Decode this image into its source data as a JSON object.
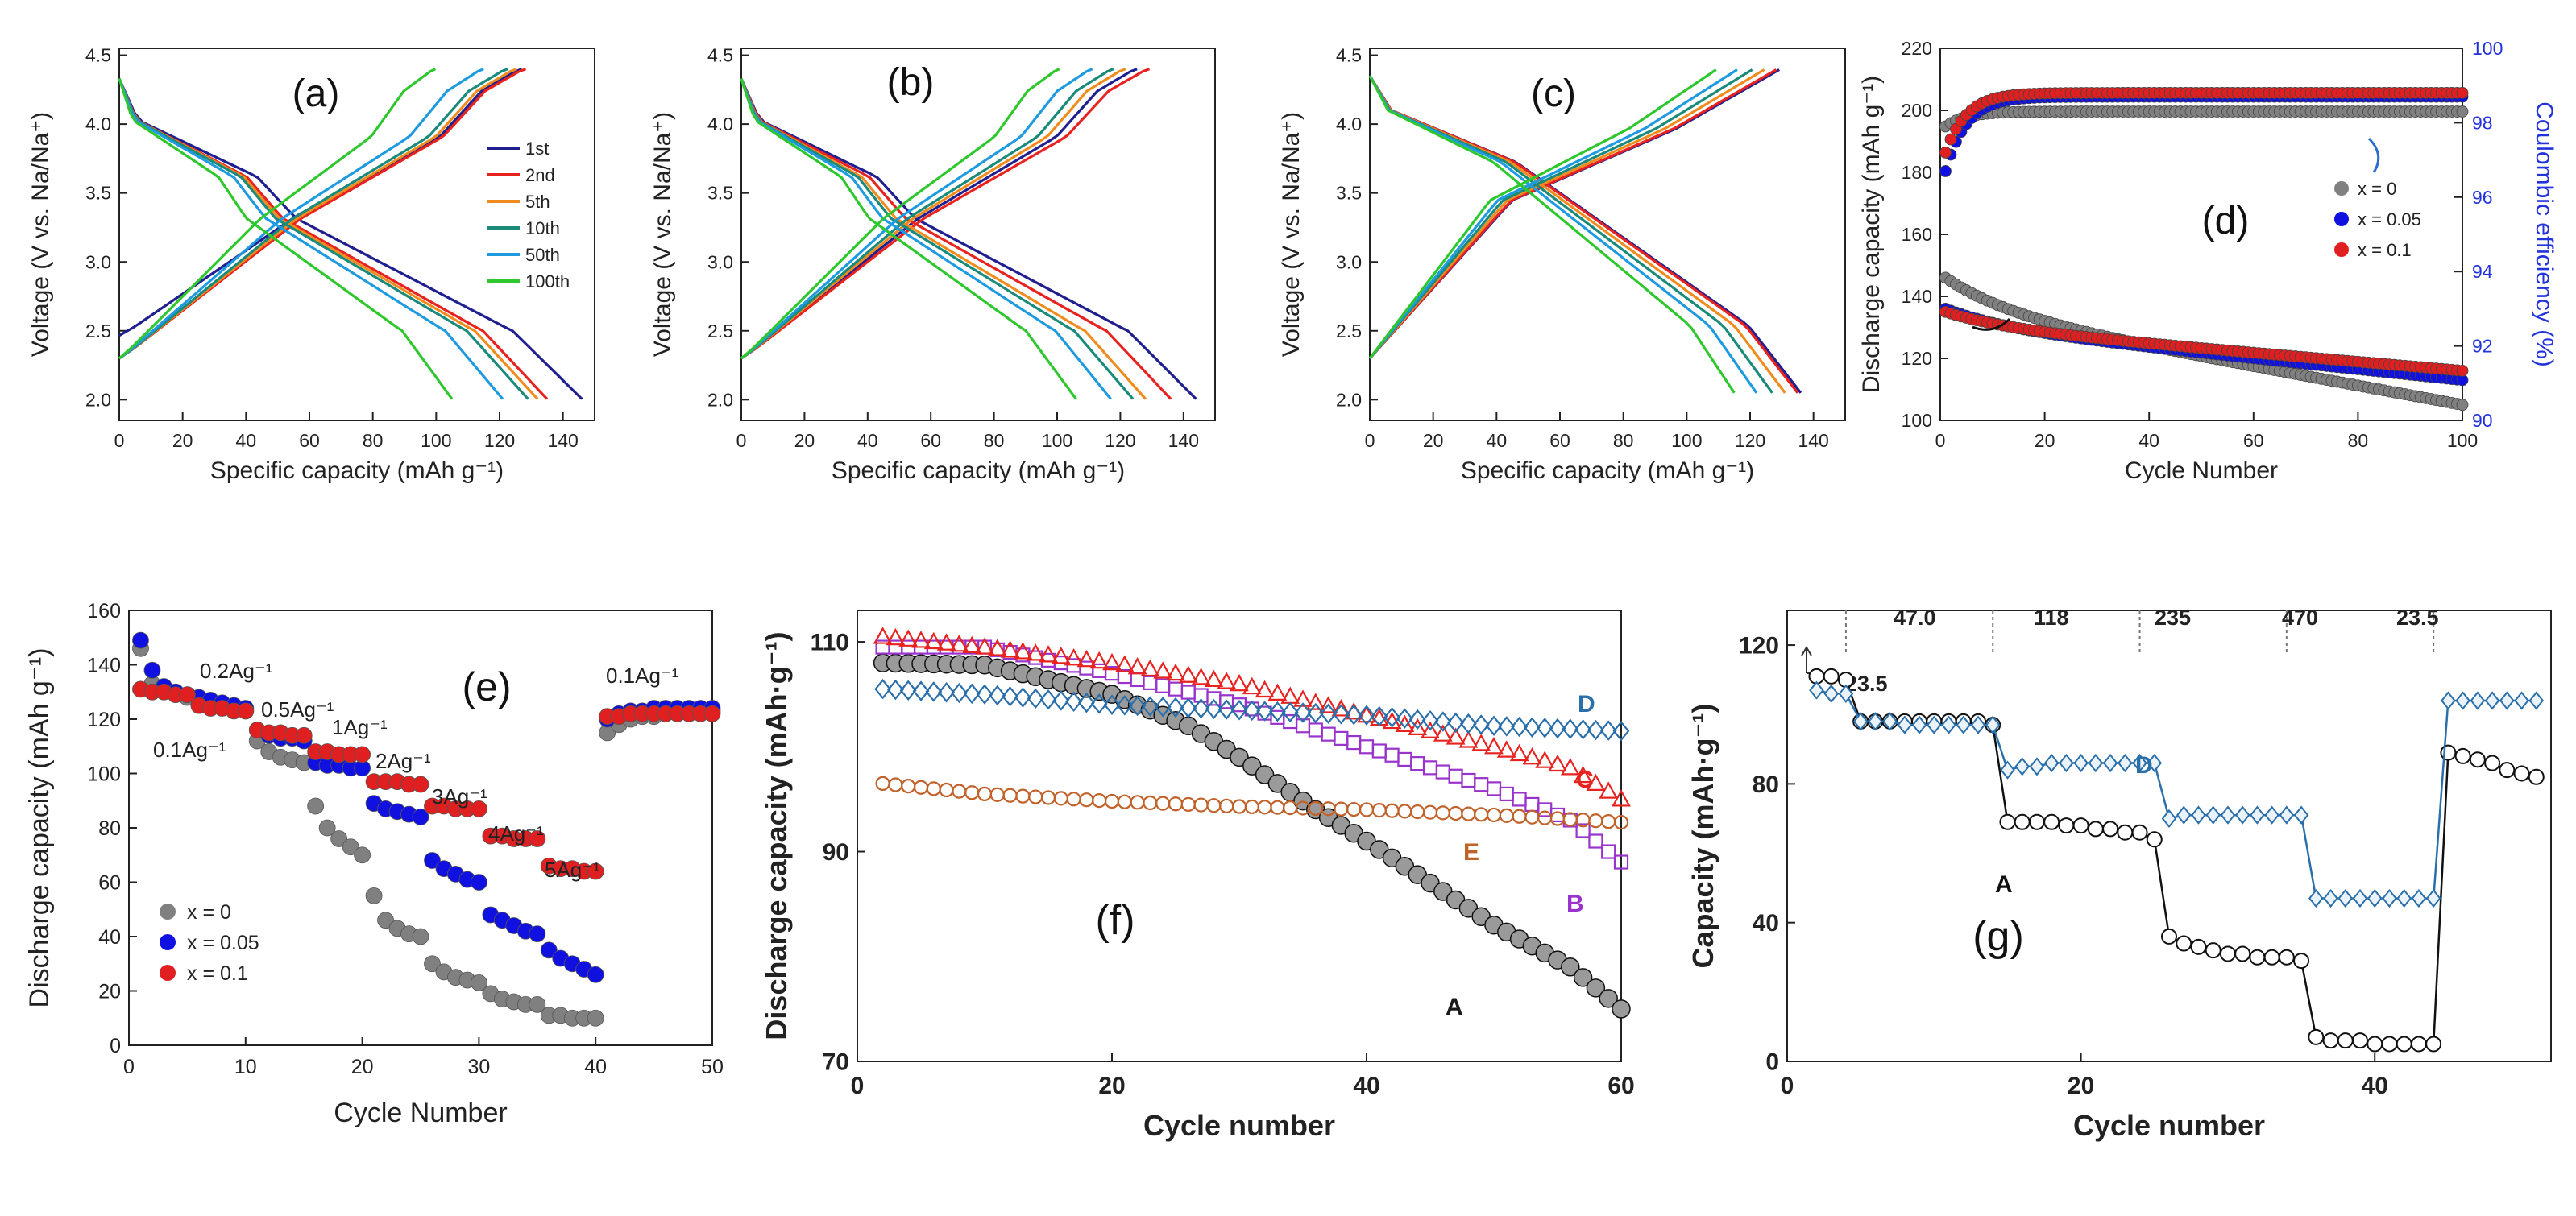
{
  "chart_data": [
    {
      "id": "a",
      "type": "line",
      "panel_label": "(a)",
      "xlabel": "Specific capacity (mAh g⁻¹)",
      "ylabel": "Voltage (V vs. Na/Na⁺)",
      "xlim": [
        0,
        150
      ],
      "ylim": [
        1.85,
        4.55
      ],
      "xticks": [
        "0",
        "20",
        "40",
        "60",
        "80",
        "100",
        "120",
        "140"
      ],
      "yticks": [
        "2.0",
        "2.5",
        "3.0",
        "3.5",
        "4.0",
        "4.5"
      ],
      "legend": [
        "1st",
        "2nd",
        "5th",
        "10th",
        "50th",
        "100th"
      ],
      "series": [
        {
          "name": "1st",
          "color": "#1f1f8f",
          "capacity": 146
        },
        {
          "name": "2nd",
          "color": "#e8231f",
          "capacity": 135
        },
        {
          "name": "5th",
          "color": "#f08c1e",
          "capacity": 132
        },
        {
          "name": "10th",
          "color": "#1a8a7a",
          "capacity": 129
        },
        {
          "name": "50th",
          "color": "#1e9be0",
          "capacity": 121
        },
        {
          "name": "100th",
          "color": "#2ec82e",
          "capacity": 105
        }
      ]
    },
    {
      "id": "b",
      "type": "line",
      "panel_label": "(b)",
      "xlabel": "Specific capacity (mAh g⁻¹)",
      "ylabel": "Voltage (V vs. Na/Na⁺)",
      "xlim": [
        0,
        150
      ],
      "ylim": [
        1.85,
        4.55
      ],
      "xticks": [
        "0",
        "20",
        "40",
        "60",
        "80",
        "100",
        "120",
        "140"
      ],
      "yticks": [
        "2.0",
        "2.5",
        "3.0",
        "3.5",
        "4.0",
        "4.5"
      ],
      "series": [
        {
          "name": "1st",
          "color": "#1f1f8f",
          "capacity": 144
        },
        {
          "name": "2nd",
          "color": "#e8231f",
          "capacity": 136
        },
        {
          "name": "5th",
          "color": "#f08c1e",
          "capacity": 128
        },
        {
          "name": "10th",
          "color": "#1a8a7a",
          "capacity": 124
        },
        {
          "name": "50th",
          "color": "#1e9be0",
          "capacity": 117
        },
        {
          "name": "100th",
          "color": "#2ec82e",
          "capacity": 106
        }
      ]
    },
    {
      "id": "c",
      "type": "line",
      "panel_label": "(c)",
      "xlabel": "Specific capacity (mAh g⁻¹)",
      "ylabel": "Voltage (V vs. Na/Na⁺)",
      "xlim": [
        0,
        150
      ],
      "ylim": [
        1.85,
        4.55
      ],
      "xticks": [
        "0",
        "20",
        "40",
        "60",
        "80",
        "100",
        "120",
        "140"
      ],
      "yticks": [
        "2.0",
        "2.5",
        "3.0",
        "3.5",
        "4.0",
        "4.5"
      ],
      "series": [
        {
          "name": "1st",
          "color": "#1f1f8f",
          "capacity": 136
        },
        {
          "name": "2nd",
          "color": "#e8231f",
          "capacity": 135
        },
        {
          "name": "5th",
          "color": "#f08c1e",
          "capacity": 131
        },
        {
          "name": "10th",
          "color": "#1a8a7a",
          "capacity": 127
        },
        {
          "name": "50th",
          "color": "#1e9be0",
          "capacity": 122
        },
        {
          "name": "100th",
          "color": "#2ec82e",
          "capacity": 115
        }
      ]
    },
    {
      "id": "d",
      "type": "scatter",
      "panel_label": "(d)",
      "xlabel": "Cycle Number",
      "ylabel": "Discharge capacity (mAh g⁻¹)",
      "y2label": "Coulombic efficiency (%)",
      "xlim": [
        0,
        100
      ],
      "ylim": [
        100,
        220
      ],
      "y2lim": [
        90,
        100
      ],
      "xticks": [
        "0",
        "20",
        "40",
        "60",
        "80",
        "100"
      ],
      "yticks": [
        "100",
        "120",
        "140",
        "160",
        "180",
        "200",
        "220"
      ],
      "y2ticks": [
        "90",
        "92",
        "94",
        "96",
        "98",
        "100"
      ],
      "legend": [
        "x = 0",
        "x = 0.05",
        "x = 0.1"
      ],
      "series": [
        {
          "name": "x = 0",
          "color": "#808080",
          "cap_start": 146,
          "cap_end": 105,
          "ce_first": 97.9,
          "ce_plateau": 98.3
        },
        {
          "name": "x = 0.05",
          "color": "#1010e0",
          "cap_start": 136,
          "cap_end": 113,
          "ce_first": 96.7,
          "ce_plateau": 98.7
        },
        {
          "name": "x = 0.1",
          "color": "#e02020",
          "cap_start": 135,
          "cap_end": 116,
          "ce_first": 97.2,
          "ce_plateau": 98.8
        }
      ]
    },
    {
      "id": "e",
      "type": "scatter",
      "panel_label": "(e)",
      "xlabel": "Cycle Number",
      "ylabel": "Discharge capacity (mAh g⁻¹)",
      "xlim": [
        0,
        50
      ],
      "ylim": [
        0,
        160
      ],
      "xticks": [
        "0",
        "10",
        "20",
        "30",
        "40",
        "50"
      ],
      "yticks": [
        "0",
        "20",
        "40",
        "60",
        "80",
        "100",
        "120",
        "140",
        "160"
      ],
      "legend": [
        "x = 0",
        "x = 0.05",
        "x = 0.1"
      ],
      "rate_labels": [
        "0.1Ag⁻¹",
        "0.2Ag⁻¹",
        "0.5Ag⁻¹",
        "1Ag⁻¹",
        "2Ag⁻¹",
        "3Ag⁻¹",
        "4Ag⁻¹",
        "5Ag⁻¹",
        "0.1Ag⁻¹"
      ],
      "series": [
        {
          "name": "x = 0",
          "color": "#808080",
          "values": [
            146,
            133,
            131,
            130,
            128,
            127,
            126,
            125,
            124,
            123,
            112,
            108,
            106,
            105,
            104,
            88,
            80,
            76,
            73,
            70,
            55,
            46,
            43,
            41,
            40,
            30,
            27,
            25,
            24,
            23,
            19,
            17,
            16,
            15,
            15,
            11,
            11,
            10,
            10,
            10,
            115,
            118,
            120,
            121,
            121,
            122,
            122,
            122,
            123,
            123
          ]
        },
        {
          "name": "x = 0.05",
          "color": "#1010e0",
          "values": [
            149,
            138,
            132,
            130,
            129,
            128,
            127,
            126,
            125,
            124,
            116,
            114,
            113,
            113,
            112,
            104,
            103,
            103,
            102,
            102,
            89,
            87,
            86,
            85,
            84,
            68,
            65,
            63,
            61,
            60,
            48,
            46,
            44,
            42,
            41,
            35,
            32,
            30,
            28,
            26,
            120,
            122,
            123,
            123,
            124,
            124,
            124,
            124,
            124,
            124
          ]
        },
        {
          "name": "x = 0.1",
          "color": "#e02020",
          "values": [
            131,
            130,
            130,
            129,
            129,
            125,
            124,
            124,
            123,
            123,
            116,
            115,
            115,
            114,
            114,
            108,
            108,
            107,
            107,
            107,
            97,
            97,
            97,
            96,
            96,
            88,
            88,
            87,
            87,
            87,
            77,
            77,
            76,
            76,
            76,
            66,
            65,
            65,
            64,
            64,
            121,
            121,
            122,
            122,
            122,
            122,
            122,
            122,
            122,
            122
          ]
        }
      ]
    },
    {
      "id": "f",
      "type": "scatter",
      "panel_label": "(f)",
      "xlabel": "Cycle number",
      "ylabel": "Discharge capacity (mAh·g⁻¹)",
      "xlim": [
        0,
        60
      ],
      "ylim": [
        70,
        113
      ],
      "xticks": [
        "0",
        "20",
        "40",
        "60"
      ],
      "yticks": [
        "70",
        "90",
        "110"
      ],
      "series": [
        {
          "name": "A",
          "color": "#1a1a1a",
          "points": [
            [
              2,
              108
            ],
            [
              10,
              107.8
            ],
            [
              20,
              105
            ],
            [
              26,
              102
            ],
            [
              30,
              99
            ],
            [
              36,
              94
            ],
            [
              40,
              91
            ],
            [
              50,
              83
            ],
            [
              56,
              79
            ],
            [
              60,
              75
            ]
          ]
        },
        {
          "name": "B",
          "color": "#9933cc",
          "points": [
            [
              2,
              109.5
            ],
            [
              10,
              109.5
            ],
            [
              20,
              107
            ],
            [
              30,
              104
            ],
            [
              40,
              100
            ],
            [
              50,
              96
            ],
            [
              56,
              93
            ],
            [
              60,
              89
            ]
          ]
        },
        {
          "name": "C",
          "color": "#e8231f",
          "points": [
            [
              2,
              110.5
            ],
            [
              10,
              109.5
            ],
            [
              20,
              108
            ],
            [
              30,
              106
            ],
            [
              40,
              103
            ],
            [
              50,
              100
            ],
            [
              56,
              98
            ],
            [
              60,
              95
            ]
          ]
        },
        {
          "name": "D",
          "color": "#2a6faa",
          "points": [
            [
              2,
              105.5
            ],
            [
              10,
              105
            ],
            [
              20,
              104
            ],
            [
              30,
              103.5
            ],
            [
              40,
              103
            ],
            [
              50,
              102
            ],
            [
              60,
              101.5
            ]
          ]
        },
        {
          "name": "E",
          "color": "#c0622a",
          "points": [
            [
              2,
              96.5
            ],
            [
              10,
              95.5
            ],
            [
              20,
              94.8
            ],
            [
              30,
              94.3
            ],
            [
              40,
              94
            ],
            [
              50,
              93.5
            ],
            [
              60,
              92.8
            ]
          ]
        }
      ]
    },
    {
      "id": "g",
      "type": "scatter",
      "panel_label": "(g)",
      "xlabel": "Cycle number",
      "ylabel": "Capacity (mAh·g⁻¹)",
      "xlim": [
        0,
        52
      ],
      "ylim": [
        0,
        130
      ],
      "xticks": [
        "0",
        "20",
        "40"
      ],
      "yticks": [
        "0",
        "40",
        "80",
        "120"
      ],
      "rate_labels": [
        "23.5",
        "47.0",
        "118",
        "235",
        "470",
        "23.5"
      ],
      "series": [
        {
          "name": "A",
          "color": "#111111",
          "values": [
            111,
            111,
            110,
            98,
            98,
            98,
            98,
            98,
            98,
            98,
            98,
            98,
            97,
            69,
            69,
            69,
            69,
            68,
            68,
            67,
            67,
            66,
            66,
            64,
            36,
            34,
            33,
            32,
            31,
            31,
            30,
            30,
            30,
            29,
            7,
            6,
            6,
            6,
            5,
            5,
            5,
            5,
            5,
            89,
            88,
            87,
            86,
            84,
            83,
            82
          ]
        },
        {
          "name": "D",
          "color": "#2a6faa",
          "values": [
            107,
            106,
            106,
            98,
            98,
            98,
            97,
            97,
            97,
            97,
            97,
            97,
            97,
            84,
            85,
            85,
            86,
            86,
            86,
            86,
            86,
            86,
            86,
            86,
            70,
            71,
            71,
            71,
            71,
            71,
            71,
            71,
            71,
            71,
            47,
            47,
            47,
            47,
            47,
            47,
            47,
            47,
            47,
            104,
            104,
            104,
            104,
            104,
            104,
            104
          ]
        }
      ]
    }
  ]
}
